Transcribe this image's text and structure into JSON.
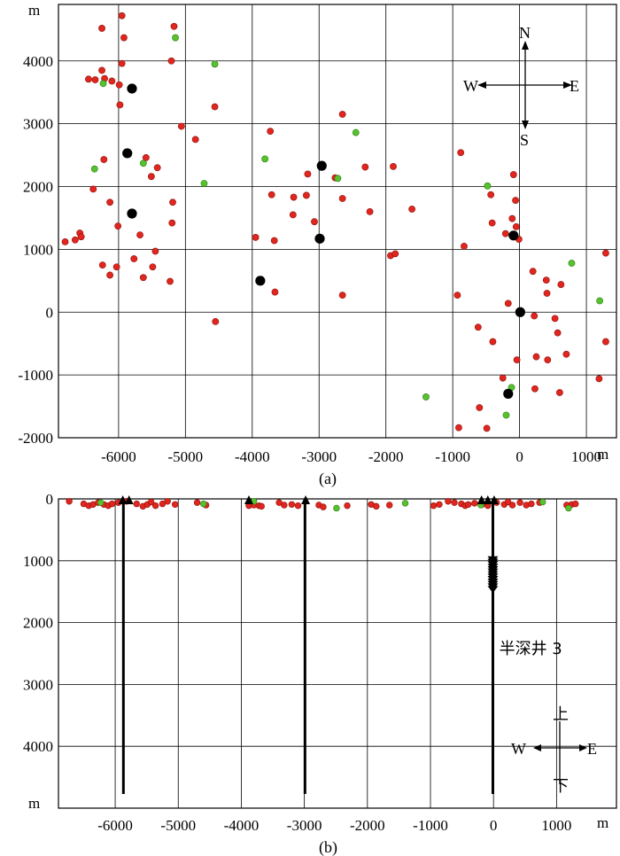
{
  "chart_data": [
    {
      "type": "scatter",
      "panel": "a",
      "caption": "(a)",
      "x_unit": "m",
      "y_unit": "m",
      "xlim": [
        -6900,
        1450
      ],
      "ylim": [
        -2000,
        4900
      ],
      "x_ticks": [
        -6000,
        -5000,
        -4000,
        -3000,
        -2000,
        -1000,
        0,
        1000
      ],
      "y_ticks": [
        -2000,
        -1000,
        0,
        1000,
        2000,
        3000,
        4000
      ],
      "grid": true,
      "compass": {
        "n": "N",
        "s": "S",
        "w": "W",
        "e": "E"
      },
      "colors": {
        "red": "#e0261e",
        "green": "#55c22e",
        "well": "#000000"
      },
      "wells": [
        {
          "x": -5800,
          "y": 3560
        },
        {
          "x": -5870,
          "y": 2530
        },
        {
          "x": -5800,
          "y": 1570
        },
        {
          "x": -3880,
          "y": 500
        },
        {
          "x": -2990,
          "y": 1170
        },
        {
          "x": -2960,
          "y": 2330
        },
        {
          "x": -90,
          "y": 1220
        },
        {
          "x": 10,
          "y": 0
        },
        {
          "x": -170,
          "y": -1300
        }
      ],
      "red_events": [
        [
          -6250,
          4520
        ],
        [
          -5950,
          4720
        ],
        [
          -5920,
          4370
        ],
        [
          -5170,
          4550
        ],
        [
          -5210,
          4000
        ],
        [
          -5950,
          3960
        ],
        [
          -6250,
          3850
        ],
        [
          -6450,
          3710
        ],
        [
          -6350,
          3700
        ],
        [
          -6210,
          3720
        ],
        [
          -6100,
          3680
        ],
        [
          -5990,
          3620
        ],
        [
          -5980,
          3300
        ],
        [
          -4560,
          3270
        ],
        [
          -5060,
          2960
        ],
        [
          -4850,
          2750
        ],
        [
          -6220,
          2430
        ],
        [
          -5590,
          2460
        ],
        [
          -5420,
          2300
        ],
        [
          -5510,
          2160
        ],
        [
          -6380,
          1960
        ],
        [
          -5190,
          1750
        ],
        [
          -6130,
          1750
        ],
        [
          -5680,
          1230
        ],
        [
          -6010,
          1370
        ],
        [
          -5200,
          1420
        ],
        [
          -6580,
          1260
        ],
        [
          -6560,
          1200
        ],
        [
          -6650,
          1150
        ],
        [
          -6800,
          1120
        ],
        [
          -5450,
          970
        ],
        [
          -5770,
          850
        ],
        [
          -6240,
          750
        ],
        [
          -6030,
          720
        ],
        [
          -6130,
          590
        ],
        [
          -5490,
          720
        ],
        [
          -5630,
          550
        ],
        [
          -5230,
          490
        ],
        [
          -4550,
          -150
        ],
        [
          -3730,
          2880
        ],
        [
          -3710,
          1870
        ],
        [
          -3380,
          1830
        ],
        [
          -3390,
          1550
        ],
        [
          -3190,
          1860
        ],
        [
          -3170,
          2200
        ],
        [
          -3070,
          1440
        ],
        [
          -2760,
          2140
        ],
        [
          -2650,
          3150
        ],
        [
          -2650,
          1810
        ],
        [
          -2310,
          2310
        ],
        [
          -1890,
          2320
        ],
        [
          -2240,
          1600
        ],
        [
          -1610,
          1640
        ],
        [
          -1930,
          900
        ],
        [
          -1860,
          930
        ],
        [
          -2650,
          270
        ],
        [
          -3670,
          1140
        ],
        [
          -3660,
          320
        ],
        [
          -3950,
          1190
        ],
        [
          -880,
          2540
        ],
        [
          -430,
          1870
        ],
        [
          -90,
          2190
        ],
        [
          -60,
          1780
        ],
        [
          -110,
          1490
        ],
        [
          -410,
          1420
        ],
        [
          -210,
          1250
        ],
        [
          -50,
          1360
        ],
        [
          -10,
          1160
        ],
        [
          -830,
          1050
        ],
        [
          -930,
          270
        ],
        [
          -170,
          140
        ],
        [
          200,
          650
        ],
        [
          400,
          510
        ],
        [
          410,
          300
        ],
        [
          620,
          440
        ],
        [
          1290,
          940
        ],
        [
          220,
          -60
        ],
        [
          530,
          -100
        ],
        [
          570,
          -330
        ],
        [
          -620,
          -240
        ],
        [
          -400,
          -470
        ],
        [
          1290,
          -470
        ],
        [
          -40,
          -760
        ],
        [
          250,
          -710
        ],
        [
          420,
          -760
        ],
        [
          700,
          -670
        ],
        [
          -250,
          -1050
        ],
        [
          230,
          -1220
        ],
        [
          600,
          -1280
        ],
        [
          1190,
          -1060
        ],
        [
          -600,
          -1520
        ],
        [
          -490,
          -1850
        ],
        [
          -910,
          -1840
        ]
      ],
      "green_events": [
        [
          -5150,
          4370
        ],
        [
          -6230,
          3640
        ],
        [
          -4560,
          3950
        ],
        [
          -2450,
          2860
        ],
        [
          -3810,
          2440
        ],
        [
          -5630,
          2370
        ],
        [
          -6360,
          2280
        ],
        [
          -4720,
          2050
        ],
        [
          -2720,
          2130
        ],
        [
          -480,
          2010
        ],
        [
          780,
          780
        ],
        [
          1200,
          180
        ],
        [
          -120,
          -1200
        ],
        [
          -1400,
          -1350
        ],
        [
          -200,
          -1640
        ]
      ]
    },
    {
      "type": "scatter",
      "panel": "b",
      "caption": "(b)",
      "x_unit": "m",
      "y_unit": "m",
      "xlim": [
        -6900,
        1950
      ],
      "ylim_inverted": [
        0,
        5000
      ],
      "x_ticks": [
        -6000,
        -5000,
        -4000,
        -3000,
        -2000,
        -1000,
        0,
        1000
      ],
      "y_ticks": [
        0,
        1000,
        2000,
        3000,
        4000
      ],
      "grid": true,
      "compass": {
        "up": "上",
        "down": "下",
        "w": "W",
        "e": "E"
      },
      "annotation": {
        "text": "半深井 3",
        "x": 90,
        "depth": 2420
      },
      "well_lines": [
        {
          "x": -5870,
          "top": 0,
          "bottom": 4770
        },
        {
          "x": -2990,
          "top": 0,
          "bottom": 4770
        },
        {
          "x": -10,
          "top": 0,
          "bottom": 4770
        }
      ],
      "well_heads": [
        -5880,
        -5780,
        -3880,
        -2980,
        -190,
        -90,
        10
      ],
      "deep_events_x": -10,
      "deep_events_depth": [
        970,
        1010,
        1050,
        1090,
        1130,
        1170,
        1210,
        1250,
        1290,
        1330,
        1370,
        1410,
        1450
      ],
      "surface_events": [
        [
          -6730,
          40
        ],
        [
          -6500,
          80
        ],
        [
          -6420,
          110
        ],
        [
          -6350,
          90
        ],
        [
          -6270,
          60
        ],
        [
          -6180,
          90
        ],
        [
          -6110,
          110
        ],
        [
          -6050,
          80
        ],
        [
          -5950,
          60
        ],
        [
          -5820,
          40
        ],
        [
          -5660,
          80
        ],
        [
          -5560,
          120
        ],
        [
          -5490,
          90
        ],
        [
          -5430,
          50
        ],
        [
          -5360,
          110
        ],
        [
          -5250,
          80
        ],
        [
          -5170,
          40
        ],
        [
          -5050,
          90
        ],
        [
          -4700,
          60
        ],
        [
          -4560,
          100
        ],
        [
          -3880,
          110
        ],
        [
          -3800,
          100
        ],
        [
          -3720,
          110
        ],
        [
          -3680,
          120
        ],
        [
          -3400,
          60
        ],
        [
          -3320,
          100
        ],
        [
          -3200,
          90
        ],
        [
          -3100,
          110
        ],
        [
          -2770,
          100
        ],
        [
          -2700,
          130
        ],
        [
          -2320,
          110
        ],
        [
          -1940,
          90
        ],
        [
          -1860,
          120
        ],
        [
          -1650,
          100
        ],
        [
          -950,
          110
        ],
        [
          -860,
          90
        ],
        [
          -720,
          40
        ],
        [
          -620,
          60
        ],
        [
          -510,
          80
        ],
        [
          -450,
          110
        ],
        [
          -400,
          90
        ],
        [
          -300,
          70
        ],
        [
          -180,
          90
        ],
        [
          -90,
          110
        ],
        [
          50,
          60
        ],
        [
          170,
          90
        ],
        [
          230,
          50
        ],
        [
          300,
          100
        ],
        [
          420,
          60
        ],
        [
          520,
          100
        ],
        [
          600,
          80
        ],
        [
          730,
          60
        ],
        [
          1160,
          100
        ],
        [
          1240,
          90
        ],
        [
          1300,
          80
        ]
      ],
      "surface_green": [
        [
          -6230,
          60
        ],
        [
          -4600,
          80
        ],
        [
          -3800,
          40
        ],
        [
          -2490,
          150
        ],
        [
          -1400,
          70
        ],
        [
          -200,
          100
        ],
        [
          780,
          50
        ],
        [
          1190,
          150
        ]
      ]
    }
  ]
}
